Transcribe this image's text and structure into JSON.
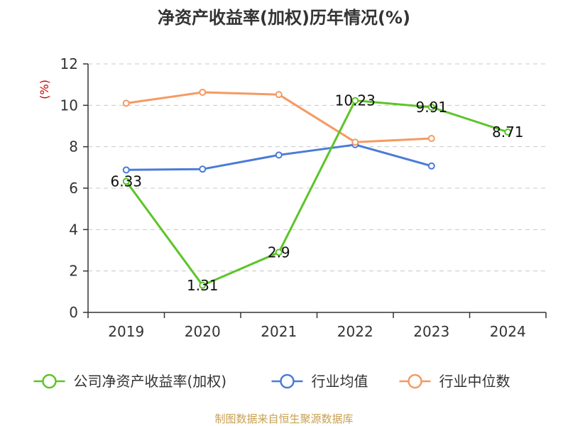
{
  "chart_data": {
    "type": "line",
    "title": "净资产收益率(加权)历年情况(%)",
    "ylabel": "(%)",
    "xlabel": "",
    "ylim": [
      0,
      12
    ],
    "yticks": [
      0,
      2,
      4,
      6,
      8,
      10,
      12
    ],
    "grid": true,
    "legend_position": "bottom",
    "categories": [
      "2019",
      "2020",
      "2021",
      "2022",
      "2023",
      "2024"
    ],
    "series": [
      {
        "name": "公司净资产收益率(加权)",
        "color": "#5dc42a",
        "values": [
          6.33,
          1.31,
          2.9,
          10.23,
          9.91,
          8.71
        ],
        "labels": [
          "6.33",
          "1.31",
          "2.9",
          "10.23",
          "9.91",
          "8.71"
        ]
      },
      {
        "name": "行业均值",
        "color": "#4a7bd8",
        "values": [
          6.88,
          6.92,
          7.6,
          8.1,
          7.07,
          null
        ]
      },
      {
        "name": "行业中位数",
        "color": "#f59a63",
        "values": [
          10.1,
          10.63,
          10.52,
          8.22,
          8.4,
          null
        ]
      }
    ]
  },
  "footer": {
    "source": "制图数据来自恒生聚源数据库"
  }
}
